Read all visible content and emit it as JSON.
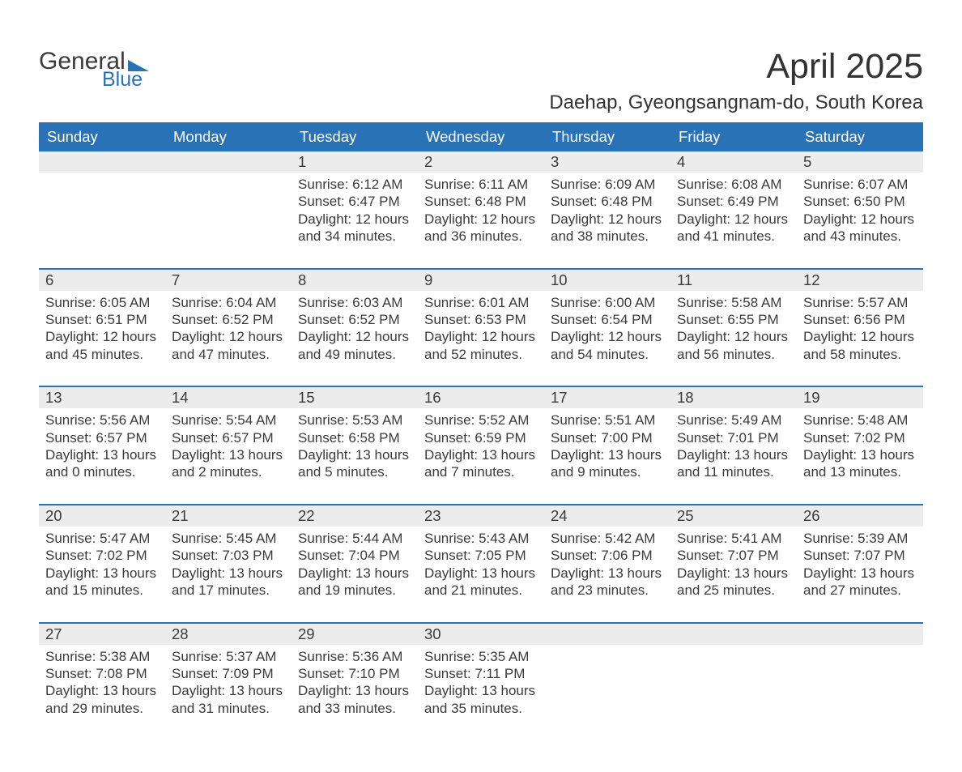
{
  "colors": {
    "brand_blue": "#2a72b6",
    "header_bg": "#2a72b6",
    "header_text": "#ffffff",
    "daynum_bg": "#ececec",
    "row_divider": "#2a72b6",
    "body_text": "#3b3b3b",
    "page_bg": "#ffffff"
  },
  "logo": {
    "word1": "General",
    "word2": "Blue"
  },
  "title": "April 2025",
  "location": "Daehap, Gyeongsangnam-do, South Korea",
  "weekday_headers": [
    "Sunday",
    "Monday",
    "Tuesday",
    "Wednesday",
    "Thursday",
    "Friday",
    "Saturday"
  ],
  "weeks": [
    [
      null,
      null,
      {
        "n": "1",
        "sunrise": "Sunrise: 6:12 AM",
        "sunset": "Sunset: 6:47 PM",
        "d1": "Daylight: 12 hours",
        "d2": "and 34 minutes."
      },
      {
        "n": "2",
        "sunrise": "Sunrise: 6:11 AM",
        "sunset": "Sunset: 6:48 PM",
        "d1": "Daylight: 12 hours",
        "d2": "and 36 minutes."
      },
      {
        "n": "3",
        "sunrise": "Sunrise: 6:09 AM",
        "sunset": "Sunset: 6:48 PM",
        "d1": "Daylight: 12 hours",
        "d2": "and 38 minutes."
      },
      {
        "n": "4",
        "sunrise": "Sunrise: 6:08 AM",
        "sunset": "Sunset: 6:49 PM",
        "d1": "Daylight: 12 hours",
        "d2": "and 41 minutes."
      },
      {
        "n": "5",
        "sunrise": "Sunrise: 6:07 AM",
        "sunset": "Sunset: 6:50 PM",
        "d1": "Daylight: 12 hours",
        "d2": "and 43 minutes."
      }
    ],
    [
      {
        "n": "6",
        "sunrise": "Sunrise: 6:05 AM",
        "sunset": "Sunset: 6:51 PM",
        "d1": "Daylight: 12 hours",
        "d2": "and 45 minutes."
      },
      {
        "n": "7",
        "sunrise": "Sunrise: 6:04 AM",
        "sunset": "Sunset: 6:52 PM",
        "d1": "Daylight: 12 hours",
        "d2": "and 47 minutes."
      },
      {
        "n": "8",
        "sunrise": "Sunrise: 6:03 AM",
        "sunset": "Sunset: 6:52 PM",
        "d1": "Daylight: 12 hours",
        "d2": "and 49 minutes."
      },
      {
        "n": "9",
        "sunrise": "Sunrise: 6:01 AM",
        "sunset": "Sunset: 6:53 PM",
        "d1": "Daylight: 12 hours",
        "d2": "and 52 minutes."
      },
      {
        "n": "10",
        "sunrise": "Sunrise: 6:00 AM",
        "sunset": "Sunset: 6:54 PM",
        "d1": "Daylight: 12 hours",
        "d2": "and 54 minutes."
      },
      {
        "n": "11",
        "sunrise": "Sunrise: 5:58 AM",
        "sunset": "Sunset: 6:55 PM",
        "d1": "Daylight: 12 hours",
        "d2": "and 56 minutes."
      },
      {
        "n": "12",
        "sunrise": "Sunrise: 5:57 AM",
        "sunset": "Sunset: 6:56 PM",
        "d1": "Daylight: 12 hours",
        "d2": "and 58 minutes."
      }
    ],
    [
      {
        "n": "13",
        "sunrise": "Sunrise: 5:56 AM",
        "sunset": "Sunset: 6:57 PM",
        "d1": "Daylight: 13 hours",
        "d2": "and 0 minutes."
      },
      {
        "n": "14",
        "sunrise": "Sunrise: 5:54 AM",
        "sunset": "Sunset: 6:57 PM",
        "d1": "Daylight: 13 hours",
        "d2": "and 2 minutes."
      },
      {
        "n": "15",
        "sunrise": "Sunrise: 5:53 AM",
        "sunset": "Sunset: 6:58 PM",
        "d1": "Daylight: 13 hours",
        "d2": "and 5 minutes."
      },
      {
        "n": "16",
        "sunrise": "Sunrise: 5:52 AM",
        "sunset": "Sunset: 6:59 PM",
        "d1": "Daylight: 13 hours",
        "d2": "and 7 minutes."
      },
      {
        "n": "17",
        "sunrise": "Sunrise: 5:51 AM",
        "sunset": "Sunset: 7:00 PM",
        "d1": "Daylight: 13 hours",
        "d2": "and 9 minutes."
      },
      {
        "n": "18",
        "sunrise": "Sunrise: 5:49 AM",
        "sunset": "Sunset: 7:01 PM",
        "d1": "Daylight: 13 hours",
        "d2": "and 11 minutes."
      },
      {
        "n": "19",
        "sunrise": "Sunrise: 5:48 AM",
        "sunset": "Sunset: 7:02 PM",
        "d1": "Daylight: 13 hours",
        "d2": "and 13 minutes."
      }
    ],
    [
      {
        "n": "20",
        "sunrise": "Sunrise: 5:47 AM",
        "sunset": "Sunset: 7:02 PM",
        "d1": "Daylight: 13 hours",
        "d2": "and 15 minutes."
      },
      {
        "n": "21",
        "sunrise": "Sunrise: 5:45 AM",
        "sunset": "Sunset: 7:03 PM",
        "d1": "Daylight: 13 hours",
        "d2": "and 17 minutes."
      },
      {
        "n": "22",
        "sunrise": "Sunrise: 5:44 AM",
        "sunset": "Sunset: 7:04 PM",
        "d1": "Daylight: 13 hours",
        "d2": "and 19 minutes."
      },
      {
        "n": "23",
        "sunrise": "Sunrise: 5:43 AM",
        "sunset": "Sunset: 7:05 PM",
        "d1": "Daylight: 13 hours",
        "d2": "and 21 minutes."
      },
      {
        "n": "24",
        "sunrise": "Sunrise: 5:42 AM",
        "sunset": "Sunset: 7:06 PM",
        "d1": "Daylight: 13 hours",
        "d2": "and 23 minutes."
      },
      {
        "n": "25",
        "sunrise": "Sunrise: 5:41 AM",
        "sunset": "Sunset: 7:07 PM",
        "d1": "Daylight: 13 hours",
        "d2": "and 25 minutes."
      },
      {
        "n": "26",
        "sunrise": "Sunrise: 5:39 AM",
        "sunset": "Sunset: 7:07 PM",
        "d1": "Daylight: 13 hours",
        "d2": "and 27 minutes."
      }
    ],
    [
      {
        "n": "27",
        "sunrise": "Sunrise: 5:38 AM",
        "sunset": "Sunset: 7:08 PM",
        "d1": "Daylight: 13 hours",
        "d2": "and 29 minutes."
      },
      {
        "n": "28",
        "sunrise": "Sunrise: 5:37 AM",
        "sunset": "Sunset: 7:09 PM",
        "d1": "Daylight: 13 hours",
        "d2": "and 31 minutes."
      },
      {
        "n": "29",
        "sunrise": "Sunrise: 5:36 AM",
        "sunset": "Sunset: 7:10 PM",
        "d1": "Daylight: 13 hours",
        "d2": "and 33 minutes."
      },
      {
        "n": "30",
        "sunrise": "Sunrise: 5:35 AM",
        "sunset": "Sunset: 7:11 PM",
        "d1": "Daylight: 13 hours",
        "d2": "and 35 minutes."
      },
      null,
      null,
      null
    ]
  ]
}
